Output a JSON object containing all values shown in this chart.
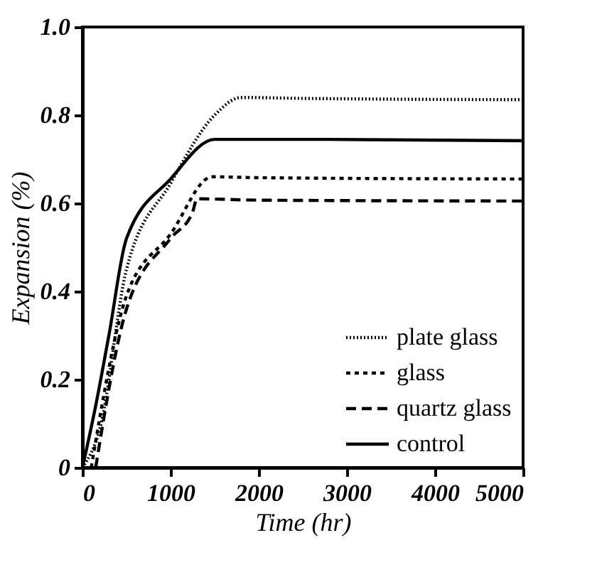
{
  "chart_data": {
    "type": "line",
    "xlabel": "Time (hr)",
    "ylabel": "Expansion (%)",
    "xlim": [
      0,
      5000
    ],
    "xticks": [
      0,
      1000,
      2000,
      3000,
      4000,
      5000
    ],
    "ylim": [
      0,
      1.0
    ],
    "yticks": [
      0,
      {
        "value": 0.2,
        "label": "0.2"
      },
      {
        "value": 0.4,
        "label": "0.4"
      },
      {
        "value": 0.6,
        "label": "0.6"
      },
      {
        "value": 0.8,
        "label": "0.8"
      },
      {
        "value": 1.0,
        "label": "1.0"
      }
    ],
    "grid": false,
    "legend": "bottom right",
    "marker": "none",
    "series": [
      {
        "name": "plate glass",
        "color": "#000000",
        "line_style": "dotted",
        "x": [
          0,
          200,
          500,
          1000,
          1500,
          1800,
          2500,
          5000
        ],
        "values": [
          0,
          0.09,
          0.45,
          0.645,
          0.8,
          0.84,
          0.838,
          0.835
        ]
      },
      {
        "name": "glass",
        "color": "#000000",
        "line_style": "dotted",
        "x": [
          100,
          500,
          1000,
          1470,
          2000,
          5000
        ],
        "values": [
          0,
          0.39,
          0.53,
          0.66,
          0.658,
          0.655
        ]
      },
      {
        "name": "quartz glass",
        "color": "#000000",
        "line_style": "dashed",
        "x": [
          150,
          500,
          1000,
          1250,
          1300,
          2000,
          5000
        ],
        "values": [
          0,
          0.36,
          0.52,
          0.58,
          0.61,
          0.607,
          0.605
        ]
      },
      {
        "name": "control",
        "color": "#000000",
        "line_style": "solid",
        "x": [
          0,
          150,
          300,
          500,
          1000,
          1500,
          2500,
          5000
        ],
        "values": [
          0,
          0.14,
          0.3,
          0.52,
          0.655,
          0.745,
          0.745,
          0.742
        ]
      }
    ]
  }
}
